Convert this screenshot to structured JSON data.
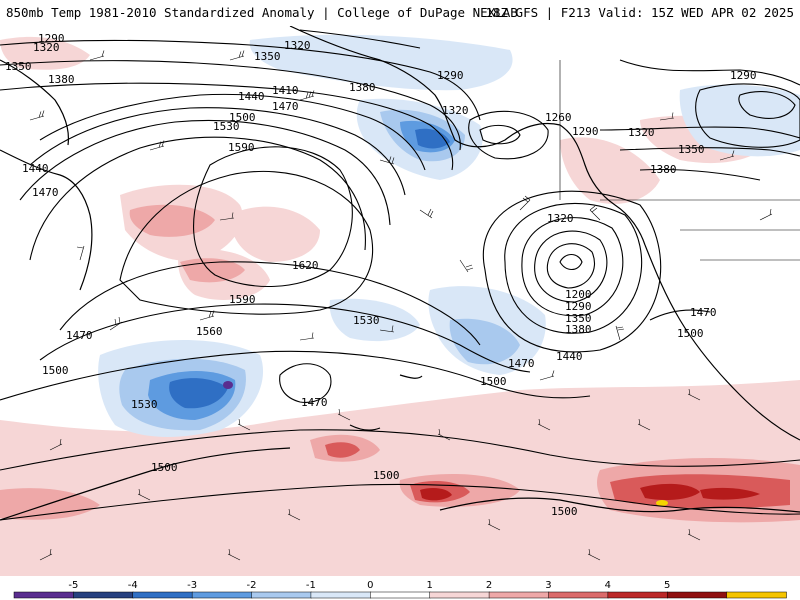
{
  "header": {
    "title_left": "850mb Temp 1981-2010 Standardized Anomaly | College of DuPage NEXLAB",
    "title_right": "18Z GFS | F213 Valid: 15Z WED APR 02 2025"
  },
  "colorbar": {
    "ticks": [
      "-5",
      "-4",
      "-3",
      "-2",
      "-1",
      "0",
      "1",
      "2",
      "3",
      "4",
      "5"
    ],
    "colors": [
      "#5a2d8f",
      "#26407f",
      "#2f6fc4",
      "#5e9be0",
      "#a9c9ee",
      "#d9e7f7",
      "#ffffff",
      "#f6d6d6",
      "#eea8a8",
      "#db6b6b",
      "#bb2828",
      "#8f1010",
      "#f5c400"
    ]
  },
  "map": {
    "anomaly_colors": {
      "pos_light": "#f6d6d6",
      "pos_mid": "#eea8a8",
      "pos_high": "#d95a5a",
      "pos_max": "#b51b1b",
      "pos_extreme": "#f5d400",
      "neg_light": "#d9e7f7",
      "neg_mid": "#a9c9ee",
      "neg_high": "#5e9be0",
      "neg_max": "#2f6fc4",
      "neg_extreme": "#5a2d8f"
    },
    "contour_labels": [
      "1290",
      "1320",
      "1350",
      "1380",
      "1320",
      "1350",
      "1380",
      "1290",
      "1440",
      "1410",
      "1470",
      "1500",
      "1530",
      "1590",
      "1320",
      "1260",
      "1290",
      "1320",
      "1290",
      "1350",
      "1380",
      "1440",
      "1470",
      "1620",
      "1590",
      "1560",
      "1530",
      "1470",
      "1500",
      "1530",
      "1470",
      "1500",
      "1320",
      "1200",
      "1290",
      "1350",
      "1380",
      "1440",
      "1470",
      "1500",
      "1500",
      "1470",
      "1500",
      "1500",
      "1500"
    ]
  }
}
